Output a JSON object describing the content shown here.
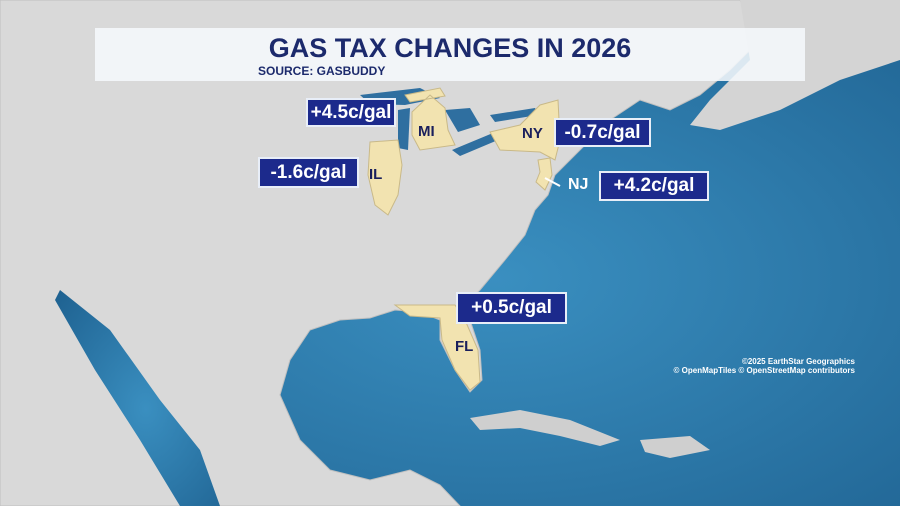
{
  "header": {
    "title": "GAS TAX CHANGES IN 2026",
    "source": "SOURCE: GASBUDDY"
  },
  "states": [
    {
      "label": "MI",
      "change": "+4.5c/gal"
    },
    {
      "label": "NY",
      "change": "-0.7c/gal"
    },
    {
      "label": "IL",
      "change": "-1.6c/gal"
    },
    {
      "label": "NJ",
      "change": "+4.2c/gal"
    },
    {
      "label": "FL",
      "change": "+0.5c/gal"
    }
  ],
  "attribution": [
    "©2025 EarthStar Geographics",
    "© OpenMapTiles © OpenStreetMap contributors"
  ]
}
